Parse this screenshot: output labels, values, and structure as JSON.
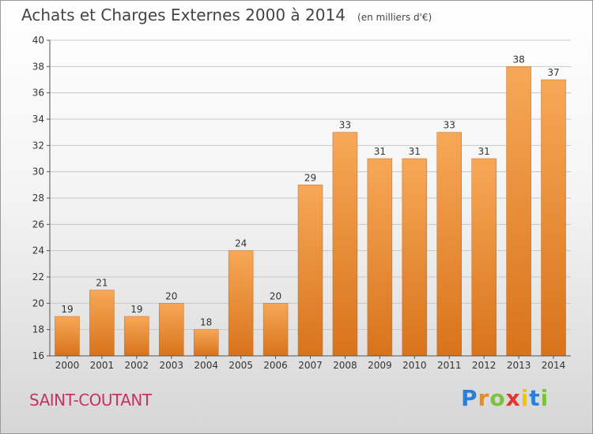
{
  "chart_data": {
    "type": "bar",
    "title": "Achats et Charges Externes 2000 à 2014",
    "subtitle": "(en milliers d'€)",
    "categories": [
      "2000",
      "2001",
      "2002",
      "2003",
      "2004",
      "2005",
      "2006",
      "2007",
      "2008",
      "2009",
      "2010",
      "2011",
      "2012",
      "2013",
      "2014"
    ],
    "values": [
      19,
      21,
      19,
      20,
      18,
      24,
      20,
      29,
      33,
      31,
      31,
      33,
      31,
      38,
      37
    ],
    "ylim": [
      16,
      40
    ],
    "yticks": [
      16,
      18,
      20,
      22,
      24,
      26,
      28,
      30,
      32,
      34,
      36,
      38,
      40
    ],
    "grid": true,
    "xlabel": "",
    "ylabel": ""
  },
  "place_label": "SAINT-COUTANT",
  "logo": {
    "letters": [
      "P",
      "r",
      "o",
      "x",
      "i",
      "t",
      "i"
    ],
    "colors": [
      "#2a7fd6",
      "#f08a1c",
      "#7cc242",
      "#e8322e",
      "#f5c400",
      "#2a7fd6",
      "#7cc242"
    ]
  },
  "colors": {
    "bar_top": "#f7a857",
    "bar_bottom": "#d8731b",
    "grid": "#c8c8c8",
    "axis": "#555555"
  }
}
